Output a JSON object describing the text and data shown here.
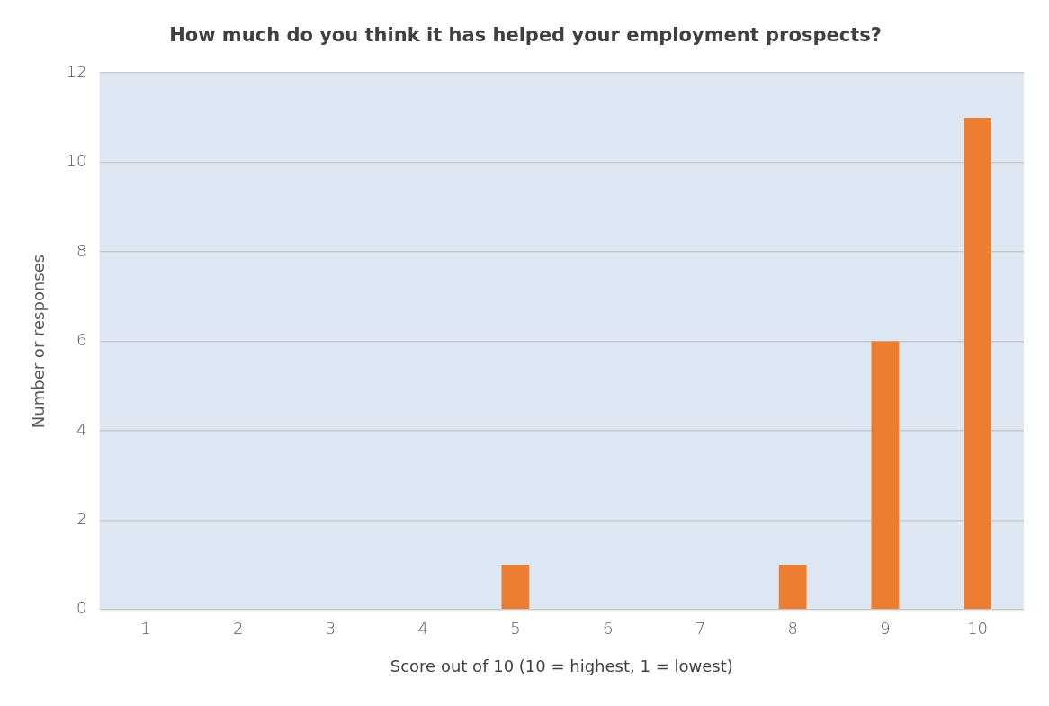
{
  "chart_data": {
    "type": "bar",
    "title": "How much do you think it has helped your employment prospects?",
    "xlabel": "Score out of 10 (10 = highest, 1 = lowest)",
    "ylabel": "Number or responses",
    "categories": [
      "1",
      "2",
      "3",
      "4",
      "5",
      "6",
      "7",
      "8",
      "9",
      "10"
    ],
    "values": [
      0,
      0,
      0,
      0,
      1,
      0,
      0,
      1,
      6,
      11
    ],
    "color": "#ed7d31",
    "ylim": [
      0,
      12
    ],
    "yticks": [
      0,
      2,
      4,
      6,
      8,
      10,
      12
    ],
    "grid": "y"
  }
}
